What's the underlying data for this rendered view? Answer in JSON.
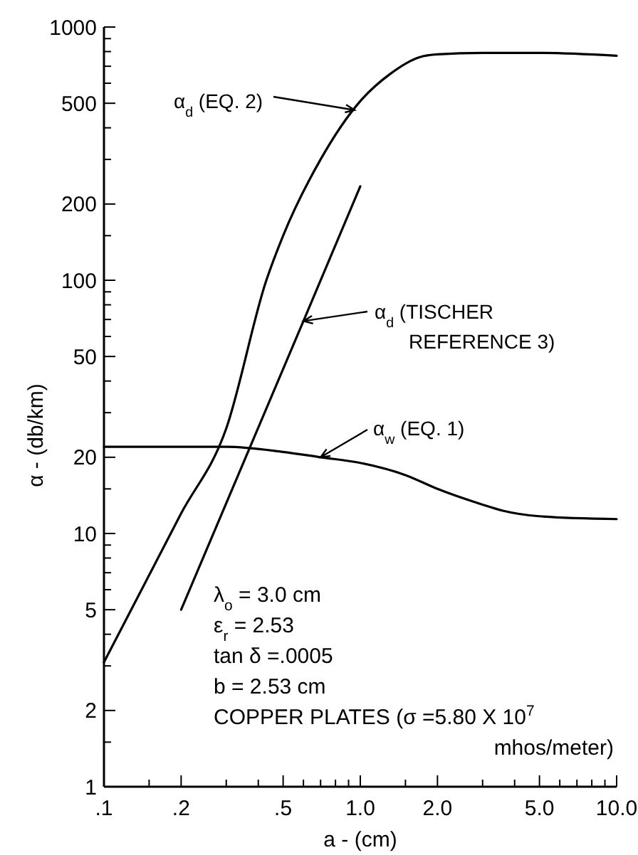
{
  "chart_data": {
    "type": "line",
    "xlabel": "a - (cm)",
    "ylabel": "α - (db/km)",
    "log": "xy",
    "grid": false,
    "marker": "none",
    "line_style": "solid",
    "xlim": [
      0.1,
      10
    ],
    "ylim": [
      1,
      1000
    ],
    "xticks": [
      {
        "value": 0.1,
        "label": ".1"
      },
      {
        "value": 0.15,
        "label": null
      },
      {
        "value": 0.2,
        "label": ".2"
      },
      {
        "value": 0.3,
        "label": null
      },
      {
        "value": 0.4,
        "label": null
      },
      {
        "value": 0.5,
        "label": ".5"
      },
      {
        "value": 0.6,
        "label": null
      },
      {
        "value": 0.7,
        "label": null
      },
      {
        "value": 0.8,
        "label": null
      },
      {
        "value": 0.9,
        "label": null
      },
      {
        "value": 1,
        "label": "1.0"
      },
      {
        "value": 1.5,
        "label": null
      },
      {
        "value": 2,
        "label": "2.0"
      },
      {
        "value": 3,
        "label": null
      },
      {
        "value": 4,
        "label": null
      },
      {
        "value": 5,
        "label": "5.0"
      },
      {
        "value": 6,
        "label": null
      },
      {
        "value": 7,
        "label": null
      },
      {
        "value": 8,
        "label": null
      },
      {
        "value": 9,
        "label": null
      },
      {
        "value": 10,
        "label": "10.0"
      }
    ],
    "yticks": [
      1,
      {
        "value": 1.5,
        "label": null
      },
      2,
      {
        "value": 3,
        "label": null
      },
      {
        "value": 4,
        "label": null
      },
      5,
      {
        "value": 6,
        "label": null
      },
      {
        "value": 7,
        "label": null
      },
      {
        "value": 8,
        "label": null
      },
      {
        "value": 9,
        "label": null
      },
      10,
      {
        "value": 15,
        "label": null
      },
      20,
      {
        "value": 30,
        "label": null
      },
      {
        "value": 40,
        "label": null
      },
      50,
      {
        "value": 60,
        "label": null
      },
      {
        "value": 70,
        "label": null
      },
      {
        "value": 80,
        "label": null
      },
      {
        "value": 90,
        "label": null
      },
      100,
      {
        "value": 150,
        "label": null
      },
      200,
      {
        "value": 300,
        "label": null
      },
      {
        "value": 400,
        "label": null
      },
      500,
      {
        "value": 600,
        "label": null
      },
      {
        "value": 700,
        "label": null
      },
      {
        "value": 800,
        "label": null
      },
      {
        "value": 900,
        "label": null
      },
      1000
    ],
    "series": [
      {
        "color": "#000000",
        "x": [
          0.1,
          0.2,
          0.3,
          0.43,
          0.5,
          0.7,
          1.0,
          1.3,
          1.7,
          2.0,
          3.0,
          5.0,
          10.0
        ],
        "values": [
          3.1,
          12,
          26,
          100,
          150,
          300,
          510,
          650,
          760,
          780,
          790,
          790,
          770
        ]
      },
      {
        "color": "#000000",
        "x": [
          0.2,
          0.6,
          1.0
        ],
        "values": [
          5,
          69,
          235
        ]
      },
      {
        "color": "#000000",
        "x": [
          0.1,
          0.3,
          0.5,
          0.7,
          1.0,
          1.5,
          2.0,
          3.0,
          3.6,
          5.0,
          10.0
        ],
        "values": [
          22,
          22,
          21,
          20,
          19,
          17,
          15,
          13,
          12.3,
          11.7,
          11.4
        ]
      }
    ],
    "annotations": [
      {
        "text": "α$_{d}$ (EQ. 2)",
        "x": 0.95,
        "y": 470
      },
      {
        "text": "α$_{d}$ (TISCHER REFERENCE 3)",
        "x": 0.6,
        "y": 69
      },
      {
        "text": "α$_{w}$ (EQ. 1)",
        "x": 0.7,
        "y": 20
      },
      "λ$_{o}$ = 3.0 cm",
      "ε$_{r}$ = 2.53",
      "tan δ =.0005",
      "b = 2.53 cm",
      "COPPER PLATES (σ =5.80 X 10$^{7}$ mhos/meter)"
    ]
  }
}
